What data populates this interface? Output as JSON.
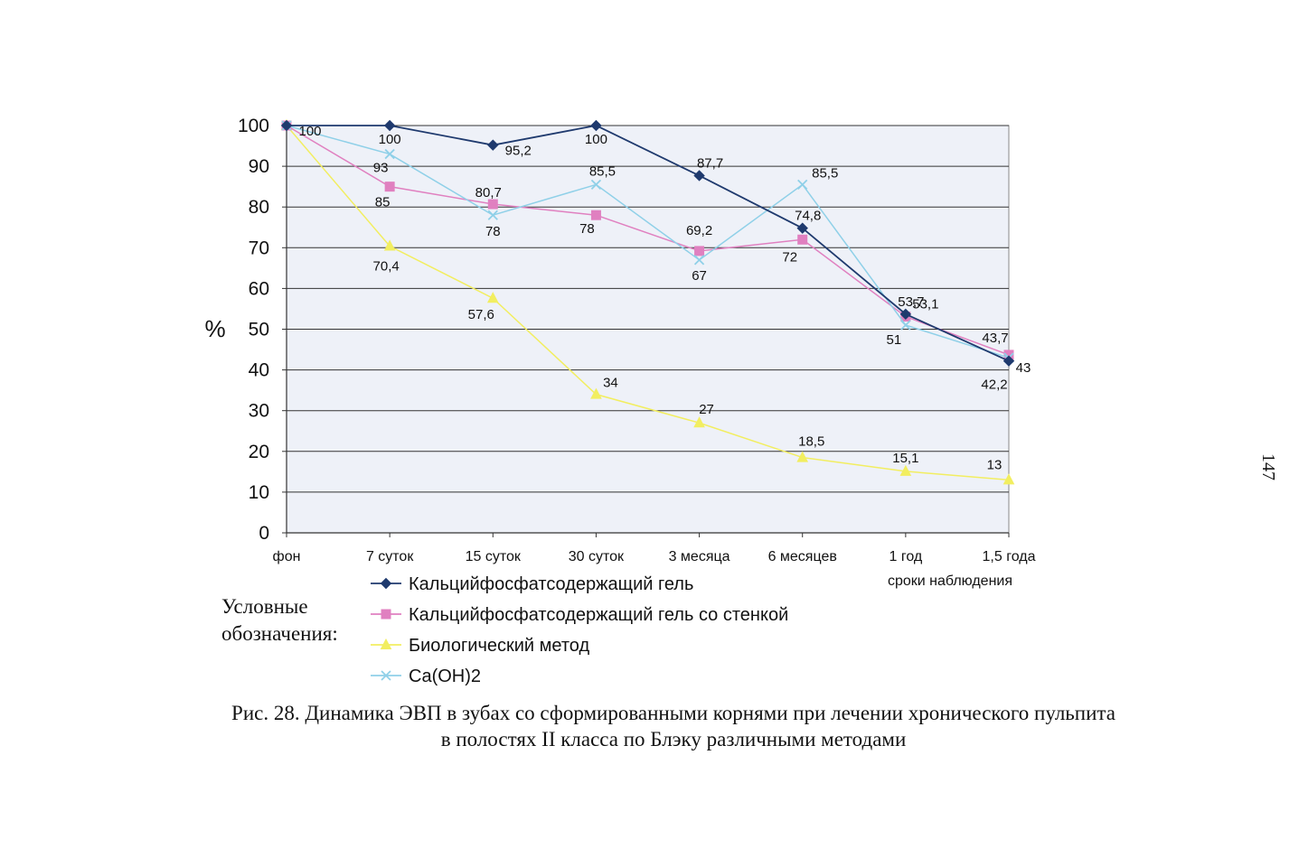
{
  "page_number": "147",
  "legend_heading": [
    "Условные",
    "обозначения:"
  ],
  "caption": [
    "Рис. 28. Динамика ЭВП в зубах со сформированными корнями при лечении хронического пульпита",
    "в полостях II класса по Блэку различными методами"
  ],
  "colors": {
    "series1": "#1f3a6e",
    "series2": "#e080c0",
    "series3": "#f2ee60",
    "series4": "#8fd0e8",
    "plot_bg": "#eef1f8",
    "grid": "#333333"
  },
  "chart_data": {
    "type": "line",
    "ylabel": "%",
    "xlabel": "сроки наблюдения",
    "ylim": [
      0,
      100
    ],
    "yticks": [
      0,
      10,
      20,
      30,
      40,
      50,
      60,
      70,
      80,
      90,
      100
    ],
    "grid": true,
    "legend_position": "bottom",
    "categories": [
      "фон",
      "7 суток",
      "15 суток",
      "30 суток",
      "3 месяца",
      "6 месяцев",
      "1 год",
      "1,5 года"
    ],
    "series": [
      {
        "name": "Кальцийфосфатсодержащий гель",
        "marker": "diamond",
        "color": "#1f3a6e",
        "values": [
          100,
          100,
          95.2,
          100,
          87.7,
          74.8,
          53.7,
          42.2
        ],
        "labels": [
          "100",
          "100",
          "95,2",
          "100",
          "87,7",
          "74,8",
          "53,7",
          "42,2"
        ]
      },
      {
        "name": "Кальцийфосфатсодержащий гель со стенкой",
        "marker": "square",
        "color": "#e080c0",
        "values": [
          100,
          85,
          80.7,
          78,
          69.2,
          72,
          53.1,
          43.7
        ],
        "labels": [
          "",
          "85",
          "80,7",
          "78",
          "69,2",
          "72",
          "53,1",
          "43,7"
        ]
      },
      {
        "name": "Биологический метод",
        "marker": "triangle",
        "color": "#f2ee60",
        "values": [
          100,
          70.4,
          57.6,
          34,
          27,
          18.5,
          15.1,
          13
        ],
        "labels": [
          "",
          "70,4",
          "57,6",
          "34",
          "27",
          "18,5",
          "15,1",
          "13"
        ]
      },
      {
        "name": "Ca(OH)2",
        "marker": "x",
        "color": "#8fd0e8",
        "values": [
          100,
          93,
          78,
          85.5,
          67,
          85.5,
          51,
          43
        ],
        "labels": [
          "",
          "93",
          "78",
          "85,5",
          "67",
          "85,5",
          "51",
          "43"
        ]
      }
    ]
  }
}
